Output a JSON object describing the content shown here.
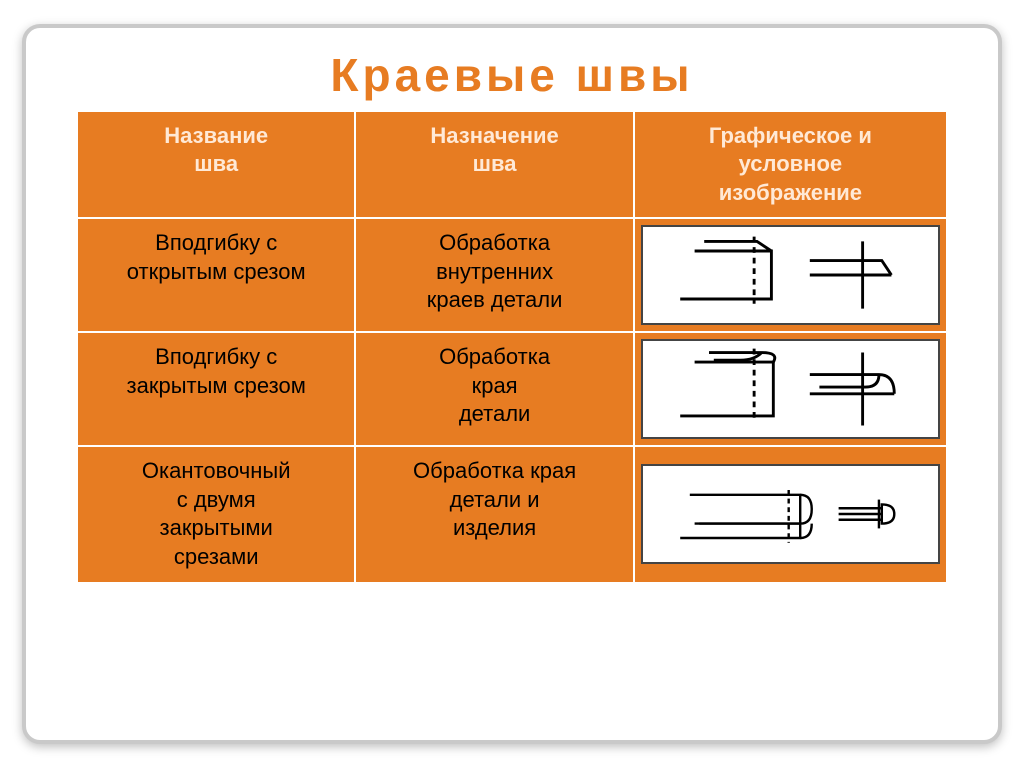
{
  "title": "Краевые  швы",
  "colors": {
    "accent": "#e77c22",
    "header_bg": "#e77c22",
    "header_fg": "#ffe9d6",
    "cell_bg": "#e77c22",
    "cell_fg": "#000000",
    "title_color": "#e77c22"
  },
  "table": {
    "headers": {
      "col1_line1": "Название",
      "col1_line2": "шва",
      "col2_line1": "Назначение",
      "col2_line2": "шва",
      "col3_line1": "Графическое  и",
      "col3_line2": "условное",
      "col3_line3": "изображение"
    },
    "rows": [
      {
        "name_line1": "Вподгибку  с",
        "name_line2": "открытым  срезом",
        "name_line3": "",
        "name_line4": "",
        "purpose_line1": "Обработка",
        "purpose_line2": "внутренних",
        "purpose_line3": "краев  детали",
        "purpose_line4": "",
        "diagram_type": "open_fold"
      },
      {
        "name_line1": "Вподгибку  с",
        "name_line2": "закрытым  срезом",
        "name_line3": "",
        "name_line4": "",
        "purpose_line1": "Обработка",
        "purpose_line2": "края",
        "purpose_line3": "детали",
        "purpose_line4": "",
        "diagram_type": "closed_fold"
      },
      {
        "name_line1": "Окантовочный",
        "name_line2": "с  двумя",
        "name_line3": "закрытыми",
        "name_line4": "срезами",
        "purpose_line1": "Обработка  края",
        "purpose_line2": "детали  и",
        "purpose_line3": "изделия",
        "purpose_line4": "",
        "diagram_type": "binding"
      }
    ]
  }
}
